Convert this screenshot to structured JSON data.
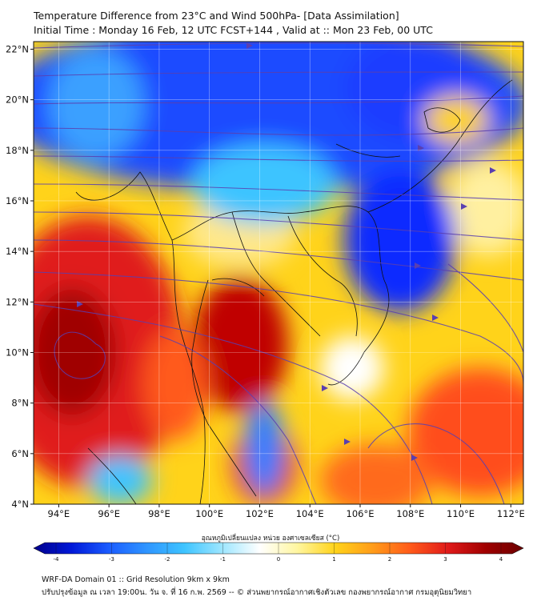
{
  "header": {
    "title_line1": "Temperature Difference from 23°C and Wind 500hPa- [Data Assimilation]",
    "title_line2": "Initial Time : Monday 16 Feb, 12 UTC FCST+144 , Valid at ::  Mon 23 Feb, 00 UTC"
  },
  "map": {
    "lat_labels": [
      "22°N",
      "20°N",
      "18°N",
      "16°N",
      "14°N",
      "12°N",
      "10°N",
      "8°N",
      "6°N",
      "4°N"
    ],
    "lon_labels": [
      "94°E",
      "96°E",
      "98°E",
      "100°E",
      "102°E",
      "104°E",
      "106°E",
      "108°E",
      "110°E",
      "112°E"
    ],
    "lat_values": [
      22,
      20,
      18,
      16,
      14,
      12,
      10,
      8,
      6,
      4
    ],
    "lon_values": [
      94,
      96,
      98,
      100,
      102,
      104,
      106,
      108,
      110,
      112
    ],
    "extent": {
      "lon_min": 93.0,
      "lon_max": 112.5,
      "lat_min": 4.0,
      "lat_max": 22.3
    },
    "field_legend_colors": {
      "cold": "#1a3cff",
      "neutral": "#ffffff",
      "warm": "#ff4d1a",
      "hot": "#a00000"
    },
    "streamline_color": "#5a3fb0"
  },
  "colorbar": {
    "label": "อุณหภูมิเปลี่ยนแปลง หน่วย องศาเซลเซียส (°C)",
    "ticks": [
      "-4",
      "-3",
      "-2",
      "-1",
      "0",
      "1",
      "2",
      "3",
      "4"
    ],
    "tick_values": [
      -4,
      -3,
      -2,
      -1,
      0,
      1,
      2,
      3,
      4
    ],
    "range": [
      -4,
      4
    ],
    "colors": [
      "#00008b",
      "#0018d8",
      "#1b5cff",
      "#2f95ff",
      "#3ec4ff",
      "#9de6ff",
      "#ffffff",
      "#fff6a0",
      "#ffd31a",
      "#ff9c1a",
      "#ff5a1a",
      "#e01a1a",
      "#a00000",
      "#6a0000"
    ]
  },
  "footer": {
    "line1": "WRF-DA Domain 01 :: Grid Resolution 9km x 9km",
    "line2": "ปรับปรุงข้อมูล ณ เวลา 19:00น. วัน จ. ที่ 16 ก.พ. 2569 -- © ส่วนพยากรณ์อากาศเชิงตัวเลข กองพยากรณ์อากาศ กรมอุตุนิยมวิทยา"
  }
}
